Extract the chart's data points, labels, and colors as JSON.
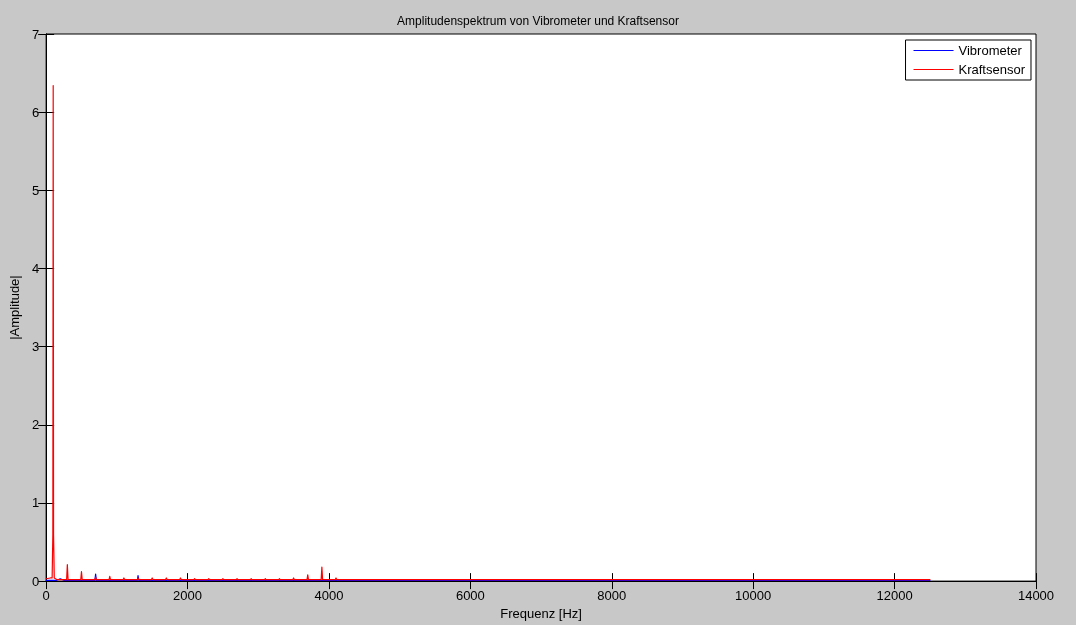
{
  "chart_data": {
    "type": "line",
    "title": "Amplitudenspektrum von Vibrometer und Kraftsensor",
    "xlabel": "Frequenz [Hz]",
    "ylabel": "|Amplitude|",
    "xlim": [
      0,
      14000
    ],
    "xticks": [
      0,
      2000,
      4000,
      6000,
      8000,
      10000,
      12000,
      14000
    ],
    "ylim": [
      0,
      7
    ],
    "yticks": [
      0,
      1,
      2,
      3,
      4,
      5,
      6,
      7
    ],
    "grid": false,
    "legend": "top right",
    "series": [
      {
        "name": "Vibrometer",
        "color": "#0000ff",
        "x": [
          0,
          150,
          200,
          250,
          690,
          700,
          710,
          1290,
          1300,
          1310,
          12500
        ],
        "values": [
          0.01,
          0.01,
          0.03,
          0.01,
          0.01,
          0.09,
          0.01,
          0.01,
          0.07,
          0.01,
          0.01
        ]
      },
      {
        "name": "Kraftsensor",
        "color": "#ff0000",
        "x": [
          0,
          60,
          85,
          95,
          100,
          105,
          115,
          150,
          290,
          300,
          310,
          490,
          500,
          510,
          690,
          700,
          710,
          890,
          900,
          910,
          1090,
          1100,
          1110,
          1290,
          1300,
          1310,
          1490,
          1500,
          1510,
          1690,
          1700,
          1710,
          1890,
          1900,
          1910,
          2090,
          2100,
          2110,
          2290,
          2300,
          2310,
          2490,
          2500,
          2510,
          2690,
          2700,
          2710,
          2890,
          2900,
          2910,
          3090,
          3100,
          3110,
          3290,
          3300,
          3310,
          3490,
          3500,
          3510,
          3690,
          3700,
          3710,
          3890,
          3900,
          3910,
          4090,
          4100,
          4110,
          12500
        ],
        "values": [
          0.03,
          0.04,
          0.04,
          0.6,
          6.34,
          0.6,
          0.04,
          0.02,
          0.02,
          0.21,
          0.02,
          0.02,
          0.12,
          0.02,
          0.02,
          0.05,
          0.02,
          0.02,
          0.06,
          0.02,
          0.02,
          0.04,
          0.02,
          0.02,
          0.04,
          0.02,
          0.02,
          0.04,
          0.02,
          0.02,
          0.04,
          0.02,
          0.02,
          0.04,
          0.02,
          0.02,
          0.03,
          0.02,
          0.02,
          0.03,
          0.02,
          0.02,
          0.03,
          0.02,
          0.02,
          0.03,
          0.02,
          0.02,
          0.03,
          0.02,
          0.02,
          0.03,
          0.02,
          0.02,
          0.03,
          0.02,
          0.02,
          0.04,
          0.02,
          0.02,
          0.08,
          0.02,
          0.02,
          0.18,
          0.02,
          0.02,
          0.04,
          0.02,
          0.02
        ]
      }
    ]
  }
}
